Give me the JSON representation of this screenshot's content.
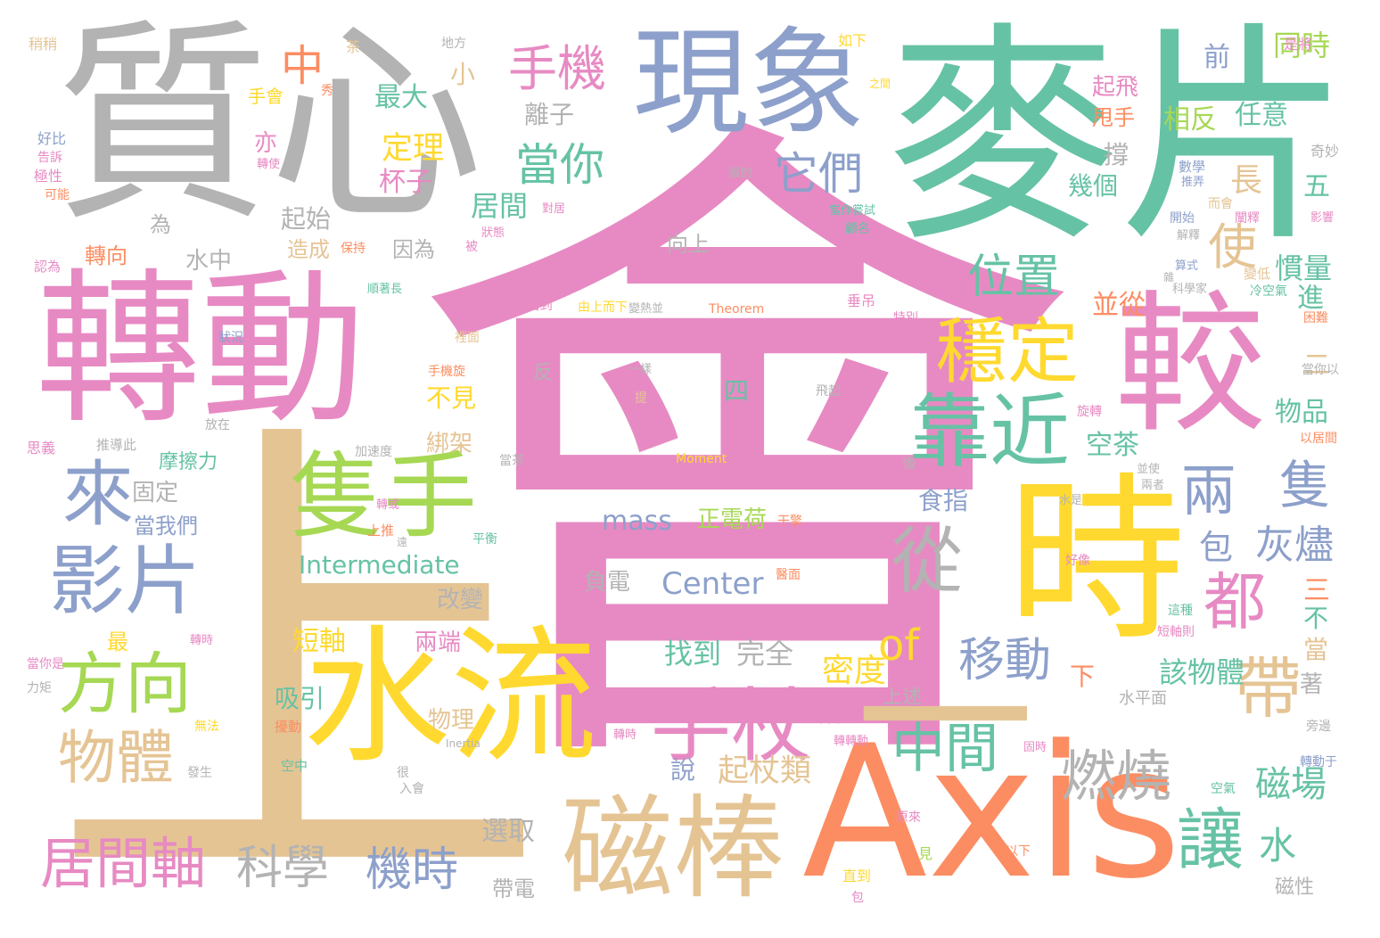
{
  "words": [
    {
      "text": "會",
      "color": "#e78ac3"
    },
    {
      "text": "上",
      "color": "#e5c494"
    },
    {
      "text": "麥片",
      "color": "#66c2a5"
    },
    {
      "text": "質心",
      "color": "#b3b3b3"
    },
    {
      "text": "轉動",
      "color": "#e78ac3"
    },
    {
      "text": "Axis",
      "color": "#fc8d62"
    },
    {
      "text": "時",
      "color": "#ffd92f"
    },
    {
      "text": "水流",
      "color": "#ffd92f"
    },
    {
      "text": "較",
      "color": "#e78ac3"
    },
    {
      "text": "現象",
      "color": "#8da0cb"
    },
    {
      "text": "一",
      "color": "#e5c494"
    },
    {
      "text": "磁棒",
      "color": "#e5c494"
    },
    {
      "text": "隻手",
      "color": "#a6d854"
    },
    {
      "text": "靠近",
      "color": "#66c2a5"
    },
    {
      "text": "穩定",
      "color": "#ffd92f"
    },
    {
      "text": "手杖",
      "color": "#e78ac3"
    },
    {
      "text": "影片",
      "color": "#8da0cb"
    },
    {
      "text": "方向",
      "color": "#a6d854"
    },
    {
      "text": "居間軸",
      "color": "#e78ac3"
    },
    {
      "text": "科學",
      "color": "#b3b3b3"
    },
    {
      "text": "機時",
      "color": "#8da0cb"
    },
    {
      "text": "物體",
      "color": "#e5c494"
    },
    {
      "text": "來",
      "color": "#8da0cb"
    },
    {
      "text": "從",
      "color": "#b3b3b3"
    },
    {
      "text": "都",
      "color": "#e78ac3"
    },
    {
      "text": "讓",
      "color": "#66c2a5"
    },
    {
      "text": "帶",
      "color": "#e5c494"
    },
    {
      "text": "兩",
      "color": "#8da0cb"
    },
    {
      "text": "隻",
      "color": "#8da0cb"
    },
    {
      "text": "中間",
      "color": "#66c2a5"
    },
    {
      "text": "燃燒",
      "color": "#b3b3b3"
    },
    {
      "text": "位置",
      "color": "#66c2a5"
    },
    {
      "text": "使",
      "color": "#e5c494"
    },
    {
      "text": "它們",
      "color": "#8da0cb"
    },
    {
      "text": "當你",
      "color": "#66c2a5"
    },
    {
      "text": "手機",
      "color": "#e78ac3"
    },
    {
      "text": "中",
      "color": "#fc8d62"
    },
    {
      "text": "移動",
      "color": "#8da0cb"
    },
    {
      "text": "of",
      "color": "#ffd92f"
    },
    {
      "text": "起杖類",
      "color": "#e5c494"
    },
    {
      "text": "mass",
      "color": "#8da0cb"
    },
    {
      "text": "Center",
      "color": "#8da0cb"
    },
    {
      "text": "Intermediate",
      "color": "#66c2a5"
    },
    {
      "text": "正電荷",
      "color": "#a6d854"
    },
    {
      "text": "負電",
      "color": "#b3b3b3"
    },
    {
      "text": "包",
      "color": "#8da0cb"
    },
    {
      "text": "灰燼",
      "color": "#8da0cb"
    },
    {
      "text": "磁場",
      "color": "#66c2a5"
    },
    {
      "text": "水",
      "color": "#66c2a5"
    },
    {
      "text": "磁性",
      "color": "#b3b3b3"
    },
    {
      "text": "帶電",
      "color": "#b3b3b3"
    },
    {
      "text": "選取",
      "color": "#b3b3b3"
    },
    {
      "text": "定理",
      "color": "#ffd92f"
    },
    {
      "text": "杯子",
      "color": "#e78ac3"
    },
    {
      "text": "最大",
      "color": "#66c2a5"
    },
    {
      "text": "居間",
      "color": "#66c2a5"
    },
    {
      "text": "起始",
      "color": "#b3b3b3"
    },
    {
      "text": "轉向",
      "color": "#fc8d62"
    },
    {
      "text": "水中",
      "color": "#b3b3b3"
    },
    {
      "text": "造成",
      "color": "#e5c494"
    },
    {
      "text": "因為",
      "color": "#b3b3b3"
    },
    {
      "text": "固定",
      "color": "#b3b3b3"
    },
    {
      "text": "當我們",
      "color": "#8da0cb"
    },
    {
      "text": "摩擦力",
      "color": "#66c2a5"
    },
    {
      "text": "改變",
      "color": "#b3b3b3"
    },
    {
      "text": "短軸",
      "color": "#ffd92f"
    },
    {
      "text": "兩端",
      "color": "#e78ac3"
    },
    {
      "text": "吸引",
      "color": "#66c2a5"
    },
    {
      "text": "物理",
      "color": "#e5c494"
    },
    {
      "text": "找到",
      "color": "#66c2a5"
    },
    {
      "text": "完全",
      "color": "#b3b3b3"
    },
    {
      "text": "密度",
      "color": "#ffd92f"
    },
    {
      "text": "上述",
      "color": "#b3b3b3"
    },
    {
      "text": "該物體",
      "color": "#66c2a5"
    },
    {
      "text": "食指",
      "color": "#8da0cb"
    },
    {
      "text": "空茶",
      "color": "#66c2a5"
    },
    {
      "text": "並從",
      "color": "#fc8d62"
    },
    {
      "text": "幾個",
      "color": "#66c2a5"
    },
    {
      "text": "撐",
      "color": "#b3b3b3"
    },
    {
      "text": "起飛",
      "color": "#e78ac3"
    },
    {
      "text": "甩手",
      "color": "#fc8d62"
    },
    {
      "text": "相反",
      "color": "#a6d854"
    },
    {
      "text": "任意",
      "color": "#66c2a5"
    },
    {
      "text": "同時",
      "color": "#a6d854"
    },
    {
      "text": "前",
      "color": "#8da0cb"
    },
    {
      "text": "慣量",
      "color": "#66c2a5"
    },
    {
      "text": "進",
      "color": "#66c2a5"
    },
    {
      "text": "物品",
      "color": "#66c2a5"
    },
    {
      "text": "五",
      "color": "#66c2a5"
    },
    {
      "text": "二",
      "color": "#e5c494"
    },
    {
      "text": "三",
      "color": "#fc8d62"
    },
    {
      "text": "不",
      "color": "#66c2a5"
    },
    {
      "text": "當",
      "color": "#e5c494"
    },
    {
      "text": "著",
      "color": "#b3b3b3"
    },
    {
      "text": "下",
      "color": "#fc8d62"
    },
    {
      "text": "長",
      "color": "#e5c494"
    },
    {
      "text": "小",
      "color": "#e5c494"
    },
    {
      "text": "離子",
      "color": "#b3b3b3"
    },
    {
      "text": "亦",
      "color": "#e78ac3"
    },
    {
      "text": "為",
      "color": "#b3b3b3"
    },
    {
      "text": "不見",
      "color": "#ffd92f"
    },
    {
      "text": "綁架",
      "color": "#e5c494"
    },
    {
      "text": "四",
      "color": "#66c2a5"
    },
    {
      "text": "反",
      "color": "#b3b3b3"
    },
    {
      "text": "最",
      "color": "#ffd92f"
    },
    {
      "text": "說",
      "color": "#8da0cb"
    },
    {
      "text": "向上",
      "color": "#b3b3b3"
    },
    {
      "text": "手會",
      "color": "#ffd92f"
    },
    {
      "text": "水平面",
      "color": "#b3b3b3"
    },
    {
      "text": "Moment",
      "color": "#ffd92f"
    },
    {
      "text": "Theorem",
      "color": "#fc8d62"
    },
    {
      "text": "Inertia",
      "color": "#b3b3b3"
    },
    {
      "text": "稍稍",
      "color": "#e5c494"
    },
    {
      "text": "地方",
      "color": "#b3b3b3"
    },
    {
      "text": "如下",
      "color": "#ffd92f"
    },
    {
      "text": "是將",
      "color": "#e78ac3"
    },
    {
      "text": "茶",
      "color": "#e5c494"
    },
    {
      "text": "秀",
      "color": "#fc8d62"
    },
    {
      "text": "之間",
      "color": "#ffd92f"
    },
    {
      "text": "好比",
      "color": "#8da0cb"
    },
    {
      "text": "告訴",
      "color": "#e78ac3"
    },
    {
      "text": "極性",
      "color": "#e78ac3"
    },
    {
      "text": "可能",
      "color": "#fc8d62"
    },
    {
      "text": "奇妙",
      "color": "#b3b3b3"
    },
    {
      "text": "數學",
      "color": "#8da0cb"
    },
    {
      "text": "推弄",
      "color": "#8da0cb"
    },
    {
      "text": "而會",
      "color": "#e5c494"
    },
    {
      "text": "闡釋",
      "color": "#e78ac3"
    },
    {
      "text": "開始",
      "color": "#8da0cb"
    },
    {
      "text": "影響",
      "color": "#e78ac3"
    },
    {
      "text": "解釋",
      "color": "#b3b3b3"
    },
    {
      "text": "算式",
      "color": "#8da0cb"
    },
    {
      "text": "變低",
      "color": "#e5c494"
    },
    {
      "text": "科學家",
      "color": "#b3b3b3"
    },
    {
      "text": "冷空氣",
      "color": "#66c2a5"
    },
    {
      "text": "困難",
      "color": "#fc8d62"
    },
    {
      "text": "當你以",
      "color": "#b3b3b3"
    },
    {
      "text": "以居間",
      "color": "#fc8d62"
    },
    {
      "text": "認為",
      "color": "#e78ac3"
    },
    {
      "text": "狀況",
      "color": "#8da0cb"
    },
    {
      "text": "放在",
      "color": "#b3b3b3"
    },
    {
      "text": "思義",
      "color": "#e78ac3"
    },
    {
      "text": "推導此",
      "color": "#b3b3b3"
    },
    {
      "text": "加速度",
      "color": "#b3b3b3"
    },
    {
      "text": "後",
      "color": "#b3b3b3"
    },
    {
      "text": "當茶",
      "color": "#b3b3b3"
    },
    {
      "text": "力矩",
      "color": "#b3b3b3"
    },
    {
      "text": "當你是",
      "color": "#e78ac3"
    },
    {
      "text": "無法",
      "color": "#ffd92f"
    },
    {
      "text": "擾動",
      "color": "#fc8d62"
    },
    {
      "text": "發生",
      "color": "#b3b3b3"
    },
    {
      "text": "空中",
      "color": "#66c2a5"
    },
    {
      "text": "入會",
      "color": "#b3b3b3"
    },
    {
      "text": "轉時",
      "color": "#e78ac3"
    },
    {
      "text": "特別",
      "color": "#e78ac3"
    },
    {
      "text": "垂吊",
      "color": "#e78ac3"
    },
    {
      "text": "由上而下",
      "color": "#ffd92f"
    },
    {
      "text": "回到",
      "color": "#e78ac3"
    },
    {
      "text": "一樣",
      "color": "#b3b3b3"
    },
    {
      "text": "飛起",
      "color": "#b3b3b3"
    },
    {
      "text": "旋轉",
      "color": "#e78ac3"
    },
    {
      "text": "好像",
      "color": "#e78ac3"
    },
    {
      "text": "醫面",
      "color": "#fc8d62"
    },
    {
      "text": "這種",
      "color": "#66c2a5"
    },
    {
      "text": "短軸則",
      "color": "#e78ac3"
    },
    {
      "text": "旁邊",
      "color": "#b3b3b3"
    },
    {
      "text": "轉動于",
      "color": "#8da0cb"
    },
    {
      "text": "空氣",
      "color": "#66c2a5"
    },
    {
      "text": "以下",
      "color": "#fc8d62"
    },
    {
      "text": "見",
      "color": "#a6d854"
    },
    {
      "text": "原來",
      "color": "#e78ac3"
    },
    {
      "text": "直到",
      "color": "#ffd92f"
    },
    {
      "text": "包",
      "color": "#e78ac3"
    },
    {
      "text": "固時",
      "color": "#e78ac3"
    },
    {
      "text": "倒下",
      "color": "#e78ac3"
    },
    {
      "text": "當你嘗試",
      "color": "#66c2a5"
    },
    {
      "text": "顧名",
      "color": "#66c2a5"
    },
    {
      "text": "順著長",
      "color": "#66c2a5"
    },
    {
      "text": "保持",
      "color": "#fc8d62"
    },
    {
      "text": "被",
      "color": "#e78ac3"
    },
    {
      "text": "狀態",
      "color": "#e78ac3"
    },
    {
      "text": "裡面",
      "color": "#e5c494"
    },
    {
      "text": "手機旋",
      "color": "#fc8d62"
    },
    {
      "text": "平衡",
      "color": "#66c2a5"
    },
    {
      "text": "上推",
      "color": "#fc8d62"
    },
    {
      "text": "遠",
      "color": "#b3b3b3"
    },
    {
      "text": "很",
      "color": "#b3b3b3"
    },
    {
      "text": "干擎",
      "color": "#fc8d62"
    },
    {
      "text": "並使",
      "color": "#b3b3b3"
    },
    {
      "text": "兩者",
      "color": "#b3b3b3"
    },
    {
      "text": "水是",
      "color": "#b3b3b3"
    },
    {
      "text": "對居",
      "color": "#e78ac3"
    },
    {
      "text": "般的",
      "color": "#b3b3b3"
    },
    {
      "text": "轉使",
      "color": "#e78ac3"
    },
    {
      "text": "轉或",
      "color": "#e78ac3"
    },
    {
      "text": "轉時",
      "color": "#e78ac3"
    },
    {
      "text": "轉轉動",
      "color": "#e78ac3"
    },
    {
      "text": "提",
      "color": "#e5c494"
    },
    {
      "text": "變熱並",
      "color": "#b3b3b3"
    },
    {
      "text": "雜",
      "color": "#b3b3b3"
    }
  ]
}
